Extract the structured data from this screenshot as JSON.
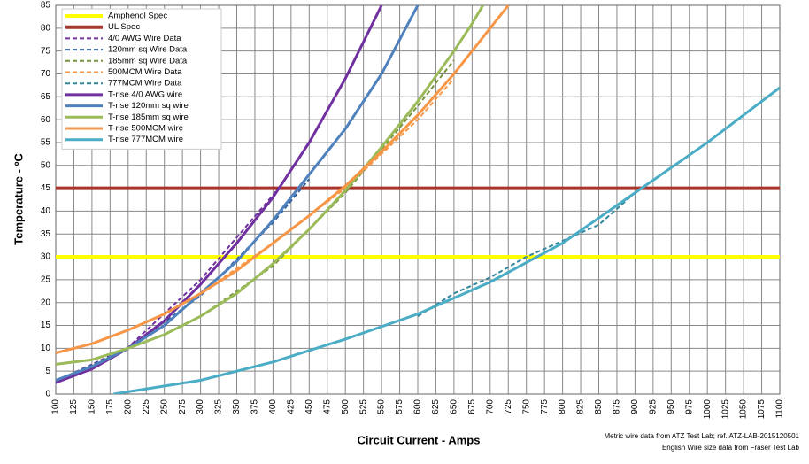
{
  "chart_data": {
    "type": "line",
    "x_label": "Circuit Current - Amps",
    "y_label": "Temperature - ºC",
    "notes": [
      "Metric wire data from ATZ Test Lab; ref. ATZ-LAB-2015120501",
      "English Wire size data from Fraser Test Lab"
    ],
    "xlim": [
      100,
      1100
    ],
    "xticks": [
      100,
      125,
      150,
      175,
      200,
      225,
      250,
      275,
      300,
      325,
      350,
      375,
      400,
      425,
      450,
      475,
      500,
      525,
      550,
      575,
      600,
      625,
      650,
      675,
      700,
      725,
      750,
      775,
      800,
      825,
      850,
      875,
      900,
      925,
      950,
      975,
      1000,
      1025,
      1050,
      1075,
      1100
    ],
    "ylim": [
      0,
      85
    ],
    "yticks": [
      0,
      5,
      10,
      15,
      20,
      25,
      30,
      35,
      40,
      45,
      50,
      55,
      60,
      65,
      70,
      75,
      80,
      85
    ],
    "grid": true,
    "legend": "upper left",
    "series": [
      {
        "name": "Amphenol Spec",
        "color": "#ffff00",
        "width": 4,
        "dashed": false,
        "x": [
          100,
          1100
        ],
        "values": [
          30,
          30
        ]
      },
      {
        "name": "UL Spec",
        "color": "#a8362c",
        "width": 4,
        "dashed": false,
        "x": [
          100,
          1100
        ],
        "values": [
          45,
          45
        ]
      },
      {
        "name": "4/0 AWG Wire Data",
        "color": "#7030a0",
        "width": 2,
        "dashed": true,
        "x": [
          100,
          200,
          300,
          400,
          410
        ],
        "values": [
          2.8,
          10.2,
          25,
          43.5,
          45.5
        ]
      },
      {
        "name": "120mm sq Wire Data",
        "color": "#2f5f9e",
        "width": 2,
        "dashed": true,
        "x": [
          100,
          200,
          300,
          400,
          450
        ],
        "values": [
          2.8,
          10,
          21.5,
          37.5,
          47
        ]
      },
      {
        "name": "185mm sq Wire Data",
        "color": "#77933c",
        "width": 2,
        "dashed": true,
        "x": [
          300,
          400,
          500,
          600,
          650
        ],
        "values": [
          17,
          28,
          44,
          63,
          73
        ]
      },
      {
        "name": "500MCM Wire Data",
        "color": "#f79646",
        "width": 2,
        "dashed": true,
        "x": [
          300,
          400,
          500,
          600,
          650
        ],
        "values": [
          22,
          33,
          45,
          60,
          69
        ]
      },
      {
        "name": "777MCM Wire Data",
        "color": "#31859c",
        "width": 2,
        "dashed": true,
        "x": [
          600,
          650,
          700,
          750,
          800,
          850,
          900
        ],
        "values": [
          17,
          22,
          25.5,
          30,
          33.5,
          37,
          44
        ]
      },
      {
        "name": "T-rise 4/0 AWG wire",
        "color": "#7030a0",
        "width": 3,
        "dashed": false,
        "x": [
          100,
          150,
          200,
          250,
          300,
          350,
          400,
          450,
          500,
          550
        ],
        "values": [
          2.5,
          5.5,
          10,
          16,
          24,
          33,
          43,
          55,
          69,
          85
        ]
      },
      {
        "name": "T-rise 120mm sq wire",
        "color": "#4f81bd",
        "width": 3,
        "dashed": false,
        "x": [
          100,
          150,
          200,
          250,
          300,
          350,
          400,
          450,
          500,
          550,
          600
        ],
        "values": [
          3,
          6,
          10,
          15,
          22,
          29,
          38,
          48,
          58,
          70,
          85
        ]
      },
      {
        "name": "T-rise 185mm sq wire",
        "color": "#9bbb59",
        "width": 3,
        "dashed": false,
        "x": [
          100,
          150,
          200,
          250,
          300,
          350,
          400,
          450,
          500,
          550,
          600,
          650,
          675,
          690
        ],
        "values": [
          6.5,
          7.5,
          10,
          13,
          17,
          22,
          28.5,
          36,
          44.5,
          54,
          64,
          75,
          81,
          85
        ]
      },
      {
        "name": "T-rise 500MCM wire",
        "color": "#f79646",
        "width": 3,
        "dashed": false,
        "x": [
          100,
          150,
          200,
          250,
          300,
          350,
          400,
          450,
          500,
          550,
          600,
          650,
          700,
          725
        ],
        "values": [
          9,
          11,
          14,
          17.5,
          22,
          27,
          33,
          39,
          45.5,
          53,
          61,
          70,
          80,
          85
        ]
      },
      {
        "name": "T-rise 777MCM wire",
        "color": "#4bacc6",
        "width": 3,
        "dashed": false,
        "x": [
          180,
          200,
          300,
          400,
          500,
          600,
          700,
          800,
          900,
          1000,
          1100
        ],
        "values": [
          0,
          0.5,
          3,
          7,
          12,
          17.5,
          24.5,
          33,
          44,
          55,
          67
        ]
      }
    ]
  }
}
